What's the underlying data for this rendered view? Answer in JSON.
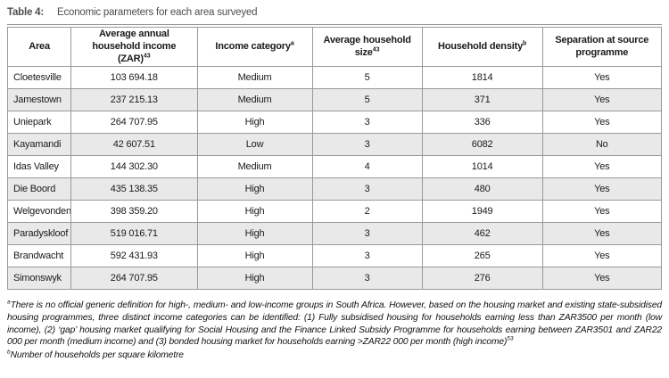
{
  "caption": {
    "label": "Table 4:",
    "text": "Economic parameters for each area surveyed"
  },
  "table": {
    "columns": [
      {
        "label": "Area",
        "sup": ""
      },
      {
        "label": "Average annual household income (ZAR)",
        "sup": "43"
      },
      {
        "label": "Income category",
        "sup": "a"
      },
      {
        "label": "Average household size",
        "sup": "43"
      },
      {
        "label": "Household density",
        "sup": "b"
      },
      {
        "label": "Separation at source programme",
        "sup": ""
      }
    ],
    "rows": [
      [
        "Cloetesville",
        "103 694.18",
        "Medium",
        "5",
        "1814",
        "Yes"
      ],
      [
        "Jamestown",
        "237 215.13",
        "Medium",
        "5",
        "371",
        "Yes"
      ],
      [
        "Uniepark",
        "264 707.95",
        "High",
        "3",
        "336",
        "Yes"
      ],
      [
        "Kayamandi",
        "42 607.51",
        "Low",
        "3",
        "6082",
        "No"
      ],
      [
        "Idas Valley",
        "144 302.30",
        "Medium",
        "4",
        "1014",
        "Yes"
      ],
      [
        "Die Boord",
        "435 138.35",
        "High",
        "3",
        "480",
        "Yes"
      ],
      [
        "Welgevonden",
        "398 359.20",
        "High",
        "2",
        "1949",
        "Yes"
      ],
      [
        "Paradyskloof",
        "519 016.71",
        "High",
        "3",
        "462",
        "Yes"
      ],
      [
        "Brandwacht",
        "592 431.93",
        "High",
        "3",
        "265",
        "Yes"
      ],
      [
        "Simonswyk",
        "264 707.95",
        "High",
        "3",
        "276",
        "Yes"
      ]
    ]
  },
  "footnotes": [
    {
      "marker": "a",
      "text": "There is no official generic definition for high-, medium- and low-income groups in South Africa. However, based on the housing market and existing state-subsidised housing programmes, three distinct income categories can be identified: (1) Fully subsidised housing for households earning less than ZAR3500 per month (low income), (2) ‘gap’ housing market qualifying for Social Housing and the Finance Linked Subsidy Programme for households earning between ZAR3501 and ZAR22 000 per month (medium income) and (3) bonded housing market for households earning >ZAR22 000 per month (high income)",
      "sup": "53"
    },
    {
      "marker": "b",
      "text": "Number of households per square kilometre",
      "sup": ""
    }
  ],
  "colors": {
    "border": "#999999",
    "alt_row_background": "#e9e9e9",
    "caption_text": "#4d4d4d",
    "body_text": "#1a1a1a"
  }
}
